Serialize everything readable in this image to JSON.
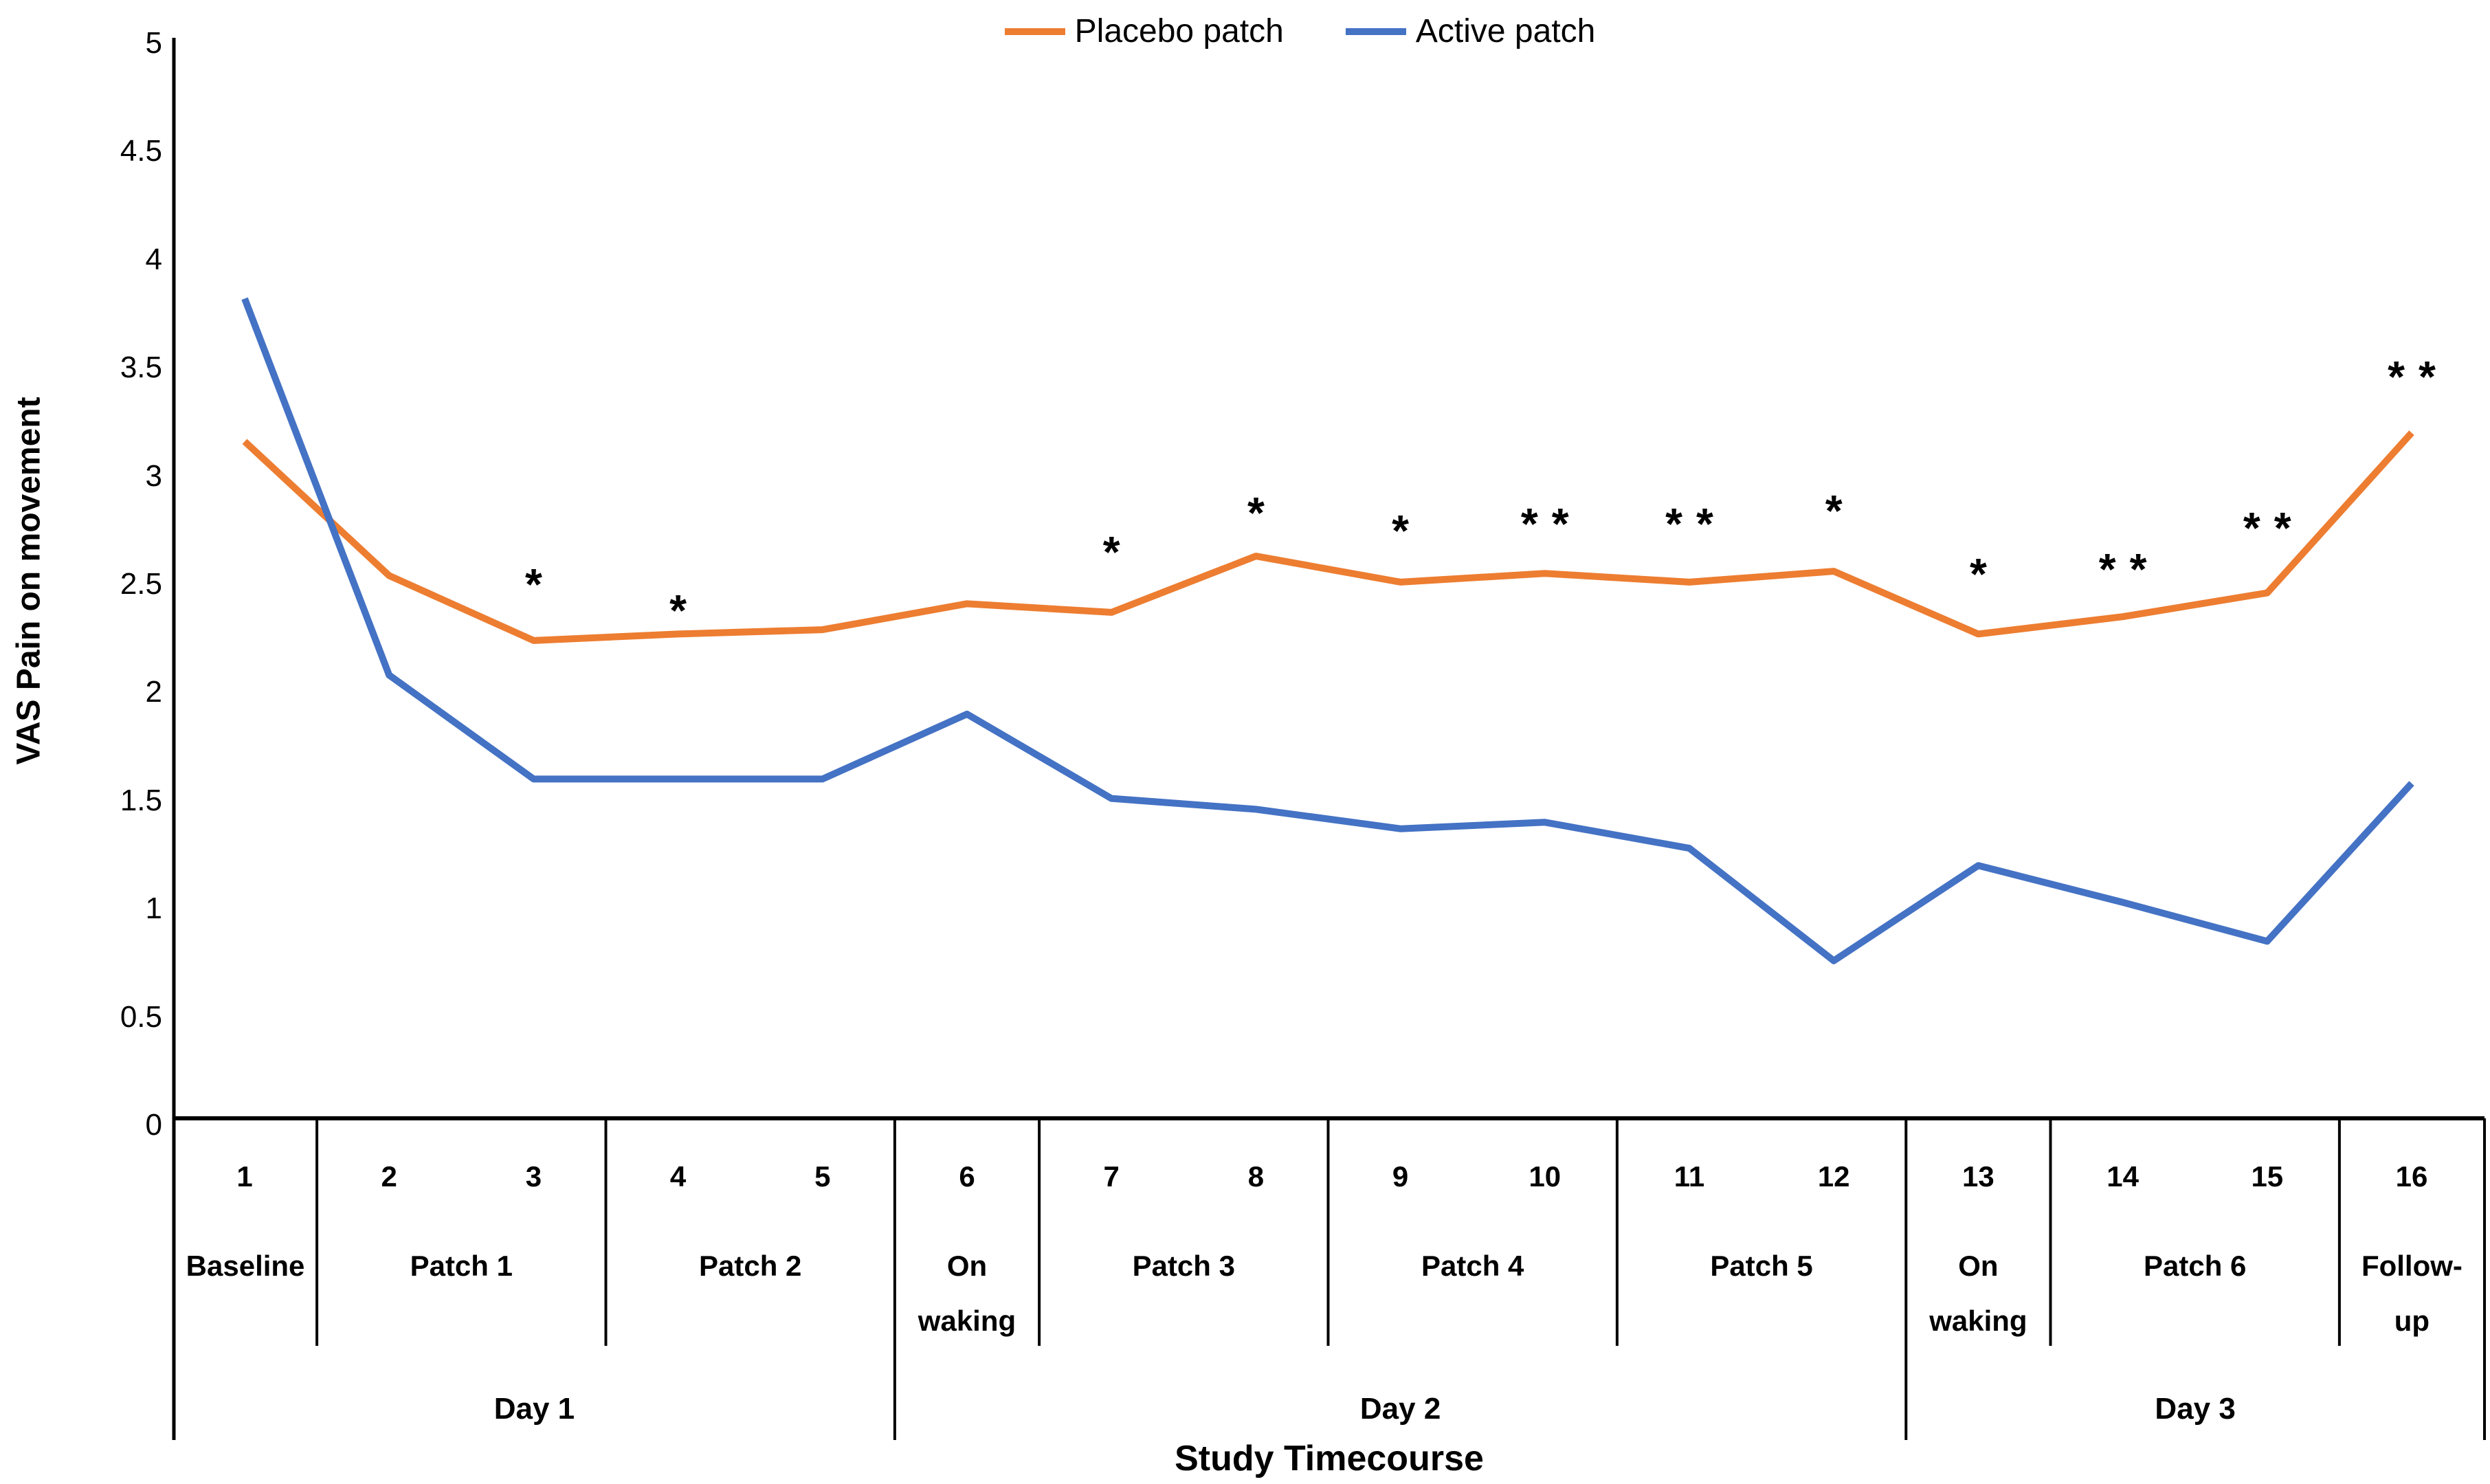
{
  "chart_data": {
    "type": "line",
    "title": "",
    "xlabel": "Study Timecourse",
    "ylabel": "VAS Pain on movement",
    "ylim": [
      0,
      5
    ],
    "ytick_labels": [
      "0",
      "0.5",
      "1",
      "1.5",
      "2",
      "2.5",
      "3",
      "3.5",
      "4",
      "4.5",
      "5"
    ],
    "grid": false,
    "legend_position": "top-center",
    "x_point_labels": [
      "1",
      "2",
      "3",
      "4",
      "5",
      "6",
      "7",
      "8",
      "9",
      "10",
      "11",
      "12",
      "13",
      "14",
      "15",
      "16"
    ],
    "series": [
      {
        "name": "Placebo patch",
        "color": "#ED7D31",
        "values": [
          3.16,
          2.54,
          2.24,
          2.27,
          2.29,
          2.41,
          2.37,
          2.63,
          2.51,
          2.55,
          2.51,
          2.56,
          2.27,
          2.35,
          2.46,
          3.2
        ]
      },
      {
        "name": "Active patch",
        "color": "#4472C4",
        "values": [
          3.82,
          2.08,
          1.6,
          1.6,
          1.6,
          1.9,
          1.51,
          1.46,
          1.37,
          1.4,
          1.28,
          0.76,
          1.2,
          1.03,
          0.85,
          1.58
        ]
      }
    ],
    "x_axis_groups": [
      {
        "label": "Baseline",
        "points": 1
      },
      {
        "label": "Patch 1",
        "points": 2
      },
      {
        "label": "Patch 2",
        "points": 2
      },
      {
        "label": "On waking",
        "points": 1
      },
      {
        "label": "Patch 3",
        "points": 2
      },
      {
        "label": "Patch 4",
        "points": 2
      },
      {
        "label": "Patch 5",
        "points": 2
      },
      {
        "label": "On waking",
        "points": 1
      },
      {
        "label": "Patch 6",
        "points": 2
      },
      {
        "label": "Follow-up",
        "points": 1
      }
    ],
    "x_axis_days": [
      {
        "label": "Day 1",
        "points": 5
      },
      {
        "label": "Day 2",
        "points": 7
      },
      {
        "label": "Day 3",
        "points": 4
      }
    ],
    "annotations": [
      {
        "point": 3,
        "text": "*",
        "y": 2.55
      },
      {
        "point": 4,
        "text": "*",
        "y": 2.43
      },
      {
        "point": 7,
        "text": "*",
        "y": 2.7
      },
      {
        "point": 8,
        "text": "*",
        "y": 2.88
      },
      {
        "point": 9,
        "text": "*",
        "y": 2.8
      },
      {
        "point": 10,
        "text": "**",
        "y": 2.83
      },
      {
        "point": 11,
        "text": "**",
        "y": 2.83
      },
      {
        "point": 12,
        "text": "*",
        "y": 2.89
      },
      {
        "point": 13,
        "text": "*",
        "y": 2.6
      },
      {
        "point": 14,
        "text": "**",
        "y": 2.62
      },
      {
        "point": 15,
        "text": "**",
        "y": 2.81
      },
      {
        "point": 16,
        "text": "**",
        "y": 3.51
      }
    ]
  }
}
